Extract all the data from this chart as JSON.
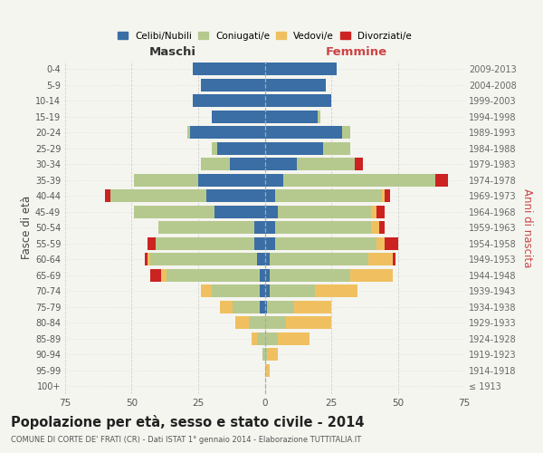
{
  "age_groups": [
    "100+",
    "95-99",
    "90-94",
    "85-89",
    "80-84",
    "75-79",
    "70-74",
    "65-69",
    "60-64",
    "55-59",
    "50-54",
    "45-49",
    "40-44",
    "35-39",
    "30-34",
    "25-29",
    "20-24",
    "15-19",
    "10-14",
    "5-9",
    "0-4"
  ],
  "birth_years": [
    "≤ 1913",
    "1914-1918",
    "1919-1923",
    "1924-1928",
    "1929-1933",
    "1934-1938",
    "1939-1943",
    "1944-1948",
    "1949-1953",
    "1954-1958",
    "1959-1963",
    "1964-1968",
    "1969-1973",
    "1974-1978",
    "1979-1983",
    "1984-1988",
    "1989-1993",
    "1994-1998",
    "1999-2003",
    "2004-2008",
    "2009-2013"
  ],
  "males": {
    "celibi": [
      0,
      0,
      0,
      0,
      0,
      2,
      2,
      2,
      3,
      4,
      4,
      19,
      22,
      25,
      13,
      18,
      28,
      20,
      27,
      24,
      27
    ],
    "coniugati": [
      0,
      0,
      1,
      3,
      6,
      10,
      18,
      35,
      40,
      37,
      36,
      30,
      36,
      24,
      11,
      2,
      1,
      0,
      0,
      0,
      0
    ],
    "vedovi": [
      0,
      0,
      0,
      2,
      5,
      5,
      4,
      2,
      1,
      0,
      0,
      0,
      0,
      0,
      0,
      0,
      0,
      0,
      0,
      0,
      0
    ],
    "divorziati": [
      0,
      0,
      0,
      0,
      0,
      0,
      0,
      4,
      1,
      3,
      0,
      0,
      2,
      0,
      0,
      0,
      0,
      0,
      0,
      0,
      0
    ]
  },
  "females": {
    "nubili": [
      0,
      0,
      0,
      0,
      0,
      1,
      2,
      2,
      2,
      4,
      4,
      5,
      4,
      7,
      12,
      22,
      29,
      20,
      25,
      23,
      27
    ],
    "coniugate": [
      0,
      0,
      1,
      5,
      8,
      10,
      17,
      30,
      37,
      38,
      36,
      35,
      40,
      57,
      22,
      10,
      3,
      1,
      0,
      0,
      0
    ],
    "vedove": [
      0,
      2,
      4,
      12,
      17,
      14,
      16,
      16,
      9,
      3,
      3,
      2,
      1,
      0,
      0,
      0,
      0,
      0,
      0,
      0,
      0
    ],
    "divorziate": [
      0,
      0,
      0,
      0,
      0,
      0,
      0,
      0,
      1,
      5,
      2,
      3,
      2,
      5,
      3,
      0,
      0,
      0,
      0,
      0,
      0
    ]
  },
  "colors": {
    "celibi": "#3a6ea5",
    "coniugati": "#b5c98e",
    "vedovi": "#f0c060",
    "divorziati": "#cc2222"
  },
  "xlim": 75,
  "title": "Popolazione per età, sesso e stato civile - 2014",
  "subtitle": "COMUNE DI CORTE DE' FRATI (CR) - Dati ISTAT 1° gennaio 2014 - Elaborazione TUTTITALIA.IT",
  "ylabel_left": "Fasce di età",
  "ylabel_right": "Anni di nascita",
  "xlabel_left": "Maschi",
  "xlabel_right": "Femmine",
  "bg_color": "#f5f5f0",
  "grid_color": "#cccccc"
}
